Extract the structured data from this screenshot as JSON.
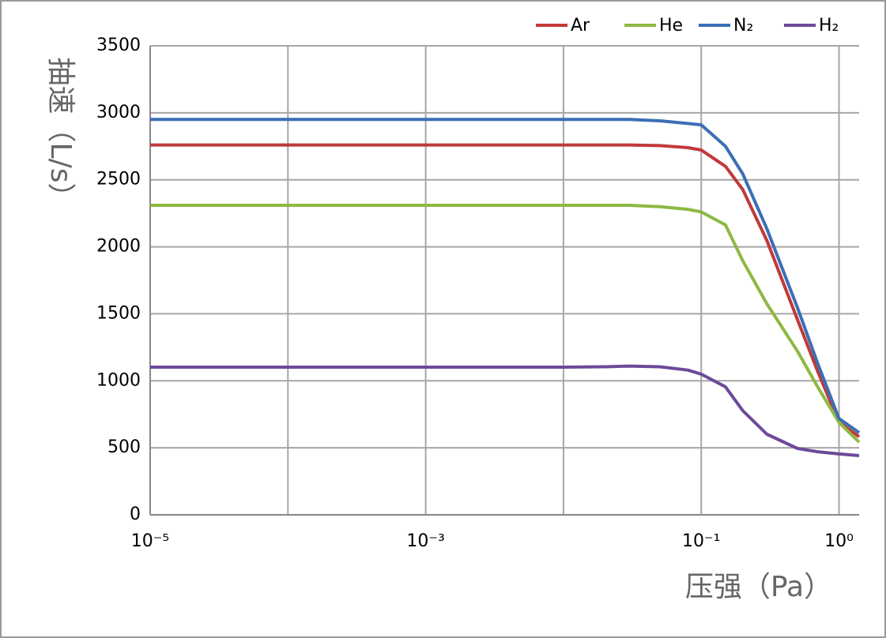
{
  "chart_data": {
    "type": "line",
    "xlabel": "压强（Pa）",
    "ylabel": "抽速（L/s）",
    "x": [
      1e-05,
      0.0001,
      0.001,
      0.01,
      0.02,
      0.03,
      0.05,
      0.08,
      0.1,
      0.15,
      0.2,
      0.3,
      0.5,
      0.7,
      1.0,
      1.4
    ],
    "series": [
      {
        "name": "Ar",
        "color": "#c0393b",
        "values": [
          2760,
          2760,
          2760,
          2760,
          2760,
          2760,
          2755,
          2740,
          2722,
          2600,
          2428,
          2045,
          1455,
          1072,
          690,
          583
        ]
      },
      {
        "name": "He",
        "color": "#8db943",
        "values": [
          2310,
          2310,
          2310,
          2310,
          2310,
          2310,
          2300,
          2280,
          2260,
          2163,
          1897,
          1573,
          1220,
          955,
          690,
          542
        ]
      },
      {
        "name": "N₂",
        "color": "#3b6fb6",
        "values": [
          2950,
          2950,
          2950,
          2950,
          2950,
          2950,
          2940,
          2920,
          2910,
          2750,
          2545,
          2133,
          1544,
          1131,
          719,
          613
        ]
      },
      {
        "name": "H₂",
        "color": "#6c4a9a",
        "values": [
          1102,
          1102,
          1102,
          1102,
          1105,
          1110,
          1105,
          1080,
          1050,
          955,
          778,
          601,
          495,
          471,
          454,
          442
        ]
      }
    ],
    "xscale": "log",
    "xlim": [
      1e-05,
      1.4
    ],
    "xticks": [
      {
        "value": 1e-05,
        "label": "10⁻⁵"
      },
      {
        "value": 0.001,
        "label": "10⁻³"
      },
      {
        "value": 0.1,
        "label": "10⁻¹"
      },
      {
        "value": 1,
        "label": "10⁰"
      }
    ],
    "xminorticks": [
      0.0001,
      0.01
    ],
    "ylim": [
      0,
      3500
    ],
    "yticks": [
      0,
      500,
      1000,
      1500,
      2000,
      2500,
      3000,
      3500
    ],
    "grid": true,
    "legend": "top-right"
  }
}
